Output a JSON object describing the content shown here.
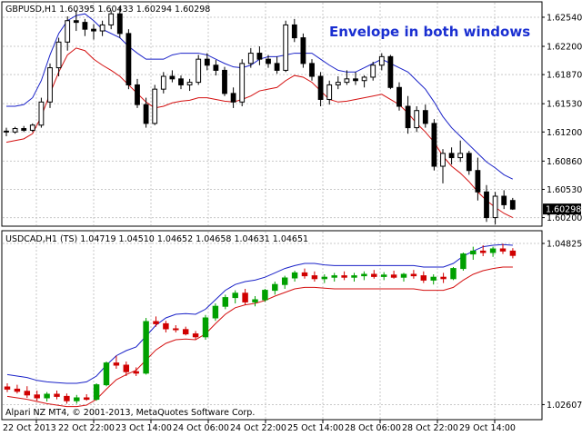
{
  "headline": "Envelope in both windows",
  "copyright": "Alpari NZ MT4, © 2001-2013, MetaQuotes Software Corp.",
  "colors": {
    "upper_band": "#1a22c8",
    "lower_band": "#d41010",
    "bull_candle": "#00a000",
    "bear_candle": "#d00000",
    "candle_main": "#000000",
    "grid": "#c8c8c8",
    "badge_bg": "#000000"
  },
  "chart_data": [
    {
      "type": "candlestick",
      "header": "GBPUSD,H1  1.60395 1.60433 1.60294 1.60298",
      "current_price_label": "1.60298",
      "y_ticks": [
        "1.62540",
        "1.62200",
        "1.61870",
        "1.61530",
        "1.61200",
        "1.60860",
        "1.60530",
        "1.60200"
      ],
      "ylim": [
        1.601,
        1.6272
      ],
      "candles": [
        [
          1.6121,
          1.6125,
          1.6115,
          1.612
        ],
        [
          1.612,
          1.6126,
          1.6118,
          1.6124
        ],
        [
          1.6124,
          1.6127,
          1.612,
          1.6122
        ],
        [
          1.6122,
          1.613,
          1.612,
          1.6128
        ],
        [
          1.6128,
          1.616,
          1.6125,
          1.6155
        ],
        [
          1.6155,
          1.62,
          1.6148,
          1.6195
        ],
        [
          1.6195,
          1.623,
          1.6185,
          1.6225
        ],
        [
          1.6225,
          1.6255,
          1.6215,
          1.625
        ],
        [
          1.625,
          1.6262,
          1.6238,
          1.6248
        ],
        [
          1.6248,
          1.6252,
          1.6232,
          1.624
        ],
        [
          1.624,
          1.6246,
          1.6228,
          1.6238
        ],
        [
          1.6238,
          1.625,
          1.6232,
          1.6245
        ],
        [
          1.6245,
          1.6262,
          1.624,
          1.6258
        ],
        [
          1.6258,
          1.6266,
          1.623,
          1.6235
        ],
        [
          1.6235,
          1.624,
          1.617,
          1.6175
        ],
        [
          1.6175,
          1.6182,
          1.6148,
          1.6152
        ],
        [
          1.6152,
          1.616,
          1.6125,
          1.613
        ],
        [
          1.613,
          1.6175,
          1.6128,
          1.617
        ],
        [
          1.617,
          1.619,
          1.6165,
          1.6185
        ],
        [
          1.6185,
          1.6192,
          1.6178,
          1.6182
        ],
        [
          1.6182,
          1.6186,
          1.617,
          1.6175
        ],
        [
          1.6175,
          1.6182,
          1.6168,
          1.6178
        ],
        [
          1.6178,
          1.621,
          1.6175,
          1.6205
        ],
        [
          1.6205,
          1.6212,
          1.6192,
          1.6198
        ],
        [
          1.6198,
          1.6204,
          1.6186,
          1.6192
        ],
        [
          1.6192,
          1.6196,
          1.6162,
          1.6165
        ],
        [
          1.6165,
          1.6172,
          1.6148,
          1.6155
        ],
        [
          1.6155,
          1.6205,
          1.615,
          1.62
        ],
        [
          1.62,
          1.6218,
          1.6195,
          1.6212
        ],
        [
          1.6212,
          1.622,
          1.6198,
          1.6205
        ],
        [
          1.6205,
          1.621,
          1.6195,
          1.62
        ],
        [
          1.62,
          1.6208,
          1.6188,
          1.6192
        ],
        [
          1.6192,
          1.625,
          1.619,
          1.6245
        ],
        [
          1.6245,
          1.6252,
          1.6225,
          1.623
        ],
        [
          1.623,
          1.6235,
          1.6195,
          1.62
        ],
        [
          1.62,
          1.6205,
          1.618,
          1.6185
        ],
        [
          1.6185,
          1.619,
          1.615,
          1.6158
        ],
        [
          1.6158,
          1.618,
          1.6152,
          1.6175
        ],
        [
          1.6175,
          1.6185,
          1.617,
          1.6178
        ],
        [
          1.6178,
          1.6192,
          1.6175,
          1.6182
        ],
        [
          1.6182,
          1.619,
          1.6175,
          1.618
        ],
        [
          1.618,
          1.6186,
          1.6172,
          1.6184
        ],
        [
          1.6184,
          1.6202,
          1.618,
          1.6198
        ],
        [
          1.6198,
          1.6212,
          1.6192,
          1.6208
        ],
        [
          1.6208,
          1.621,
          1.617,
          1.6172
        ],
        [
          1.6172,
          1.6178,
          1.6145,
          1.615
        ],
        [
          1.615,
          1.6162,
          1.6118,
          1.6125
        ],
        [
          1.6125,
          1.615,
          1.612,
          1.6145
        ],
        [
          1.6145,
          1.6152,
          1.6125,
          1.613
        ],
        [
          1.613,
          1.6135,
          1.6075,
          1.608
        ],
        [
          1.608,
          1.61,
          1.606,
          1.6095
        ],
        [
          1.6095,
          1.6102,
          1.6082,
          1.609
        ],
        [
          1.609,
          1.611,
          1.6085,
          1.6095
        ],
        [
          1.6095,
          1.6098,
          1.607,
          1.6075
        ],
        [
          1.6075,
          1.609,
          1.604,
          1.605
        ],
        [
          1.605,
          1.6058,
          1.6015,
          1.602
        ],
        [
          1.602,
          1.605,
          1.6012,
          1.6045
        ],
        [
          1.6045,
          1.6052,
          1.603,
          1.6035
        ],
        [
          1.604,
          1.6043,
          1.6029,
          1.603
        ]
      ],
      "upper_band": [
        1.615,
        1.615,
        1.6152,
        1.616,
        1.618,
        1.621,
        1.6235,
        1.625,
        1.6256,
        1.6258,
        1.625,
        1.624,
        1.6235,
        1.623,
        1.622,
        1.6212,
        1.6205,
        1.6205,
        1.6205,
        1.621,
        1.6212,
        1.6212,
        1.6212,
        1.621,
        1.6205,
        1.62,
        1.6196,
        1.6195,
        1.6198,
        1.6205,
        1.6208,
        1.6208,
        1.621,
        1.6212,
        1.6212,
        1.6212,
        1.6205,
        1.6198,
        1.6192,
        1.619,
        1.619,
        1.6195,
        1.62,
        1.6205,
        1.62,
        1.6195,
        1.619,
        1.618,
        1.617,
        1.6155,
        1.6138,
        1.6125,
        1.6115,
        1.6105,
        1.6095,
        1.6085,
        1.6078,
        1.607,
        1.6065
      ],
      "lower_band": [
        1.6108,
        1.611,
        1.6112,
        1.6118,
        1.6138,
        1.6165,
        1.619,
        1.621,
        1.6218,
        1.6215,
        1.6205,
        1.6198,
        1.6192,
        1.6185,
        1.6175,
        1.6165,
        1.6155,
        1.6148,
        1.615,
        1.6154,
        1.6156,
        1.6157,
        1.616,
        1.616,
        1.6158,
        1.6156,
        1.6155,
        1.6158,
        1.6162,
        1.6168,
        1.617,
        1.6172,
        1.618,
        1.6186,
        1.6184,
        1.6178,
        1.6168,
        1.6158,
        1.6155,
        1.6156,
        1.6158,
        1.616,
        1.6162,
        1.6164,
        1.6158,
        1.6152,
        1.6142,
        1.613,
        1.612,
        1.6108,
        1.6092,
        1.608,
        1.6072,
        1.6062,
        1.605,
        1.604,
        1.6032,
        1.6025,
        1.602
      ]
    },
    {
      "type": "candlestick",
      "header": "USDCAD,H1 (TS) 1.04719 1.04510 1.04652 1.04658 1.04631 1.04651",
      "y_ticks": [
        "1.04825",
        "1.02607"
      ],
      "ylim": [
        1.024,
        1.05
      ],
      "candles": [
        [
          1.0285,
          1.029,
          1.0278,
          1.0282
        ],
        [
          1.0282,
          1.0288,
          1.0276,
          1.0279
        ],
        [
          1.0279,
          1.0286,
          1.027,
          1.0274
        ],
        [
          1.0274,
          1.028,
          1.0266,
          1.027
        ],
        [
          1.027,
          1.0278,
          1.0265,
          1.0275
        ],
        [
          1.0275,
          1.028,
          1.0268,
          1.0272
        ],
        [
          1.0272,
          1.0276,
          1.0262,
          1.0266
        ],
        [
          1.0266,
          1.0274,
          1.0262,
          1.027
        ],
        [
          1.027,
          1.0275,
          1.0266,
          1.0268
        ],
        [
          1.0268,
          1.029,
          1.0266,
          1.0288
        ],
        [
          1.0288,
          1.032,
          1.0286,
          1.0318
        ],
        [
          1.0318,
          1.0328,
          1.031,
          1.0315
        ],
        [
          1.0315,
          1.032,
          1.03,
          1.0306
        ],
        [
          1.0306,
          1.0312,
          1.03,
          1.0304
        ],
        [
          1.0304,
          1.038,
          1.0302,
          1.0375
        ],
        [
          1.0375,
          1.0382,
          1.0368,
          1.0372
        ],
        [
          1.0372,
          1.0376,
          1.036,
          1.0365
        ],
        [
          1.0365,
          1.037,
          1.036,
          1.0364
        ],
        [
          1.0364,
          1.0368,
          1.0356,
          1.0358
        ],
        [
          1.0358,
          1.0362,
          1.035,
          1.0354
        ],
        [
          1.0354,
          1.0384,
          1.035,
          1.038
        ],
        [
          1.038,
          1.04,
          1.0376,
          1.0396
        ],
        [
          1.0396,
          1.0412,
          1.0392,
          1.0408
        ],
        [
          1.0408,
          1.0418,
          1.04,
          1.0414
        ],
        [
          1.0414,
          1.042,
          1.0398,
          1.0402
        ],
        [
          1.0402,
          1.041,
          1.0396,
          1.0405
        ],
        [
          1.0405,
          1.042,
          1.0402,
          1.0418
        ],
        [
          1.0418,
          1.043,
          1.0412,
          1.0426
        ],
        [
          1.0426,
          1.0438,
          1.042,
          1.0435
        ],
        [
          1.0435,
          1.0445,
          1.043,
          1.0442
        ],
        [
          1.0442,
          1.0448,
          1.0434,
          1.0438
        ],
        [
          1.0438,
          1.0444,
          1.043,
          1.0434
        ],
        [
          1.0434,
          1.044,
          1.0428,
          1.0436
        ],
        [
          1.0436,
          1.0442,
          1.043,
          1.0438
        ],
        [
          1.0438,
          1.0444,
          1.0432,
          1.0436
        ],
        [
          1.0436,
          1.0442,
          1.043,
          1.0438
        ],
        [
          1.0438,
          1.0444,
          1.0432,
          1.044
        ],
        [
          1.044,
          1.0446,
          1.0434,
          1.0437
        ],
        [
          1.0437,
          1.0443,
          1.0432,
          1.0439
        ],
        [
          1.0439,
          1.0445,
          1.0434,
          1.0436
        ],
        [
          1.0436,
          1.0442,
          1.043,
          1.044
        ],
        [
          1.044,
          1.0446,
          1.0434,
          1.0438
        ],
        [
          1.0438,
          1.0444,
          1.0428,
          1.0432
        ],
        [
          1.0432,
          1.044,
          1.0426,
          1.0436
        ],
        [
          1.0436,
          1.0442,
          1.0428,
          1.0434
        ],
        [
          1.0434,
          1.045,
          1.0432,
          1.0448
        ],
        [
          1.0448,
          1.047,
          1.0445,
          1.0468
        ],
        [
          1.0468,
          1.0478,
          1.046,
          1.0472
        ],
        [
          1.0472,
          1.048,
          1.0465,
          1.047
        ],
        [
          1.047,
          1.0478,
          1.0464,
          1.0475
        ],
        [
          1.0475,
          1.0482,
          1.0468,
          1.0472
        ],
        [
          1.0472,
          1.0476,
          1.0462,
          1.0466
        ]
      ],
      "upper_band": [
        1.0302,
        1.03,
        1.0298,
        1.0294,
        1.0292,
        1.0291,
        1.029,
        1.029,
        1.0292,
        1.03,
        1.0315,
        1.0328,
        1.0335,
        1.034,
        1.0355,
        1.037,
        1.038,
        1.0385,
        1.0386,
        1.0385,
        1.0392,
        1.0405,
        1.0418,
        1.0426,
        1.043,
        1.0432,
        1.0436,
        1.0442,
        1.0448,
        1.0452,
        1.0455,
        1.0455,
        1.0453,
        1.0452,
        1.0452,
        1.0452,
        1.0452,
        1.0452,
        1.0452,
        1.0452,
        1.0452,
        1.0452,
        1.045,
        1.045,
        1.045,
        1.0455,
        1.0465,
        1.0472,
        1.0478,
        1.048,
        1.0481,
        1.048
      ],
      "lower_band": [
        1.0272,
        1.027,
        1.0268,
        1.0265,
        1.0262,
        1.026,
        1.0258,
        1.0258,
        1.026,
        1.0268,
        1.0282,
        1.0295,
        1.0302,
        1.0308,
        1.0322,
        1.0336,
        1.0345,
        1.035,
        1.0351,
        1.035,
        1.0358,
        1.0372,
        1.0385,
        1.0394,
        1.0398,
        1.04,
        1.0404,
        1.041,
        1.0415,
        1.042,
        1.0422,
        1.0422,
        1.0421,
        1.042,
        1.042,
        1.042,
        1.042,
        1.042,
        1.042,
        1.042,
        1.042,
        1.042,
        1.0418,
        1.0418,
        1.0418,
        1.0422,
        1.0432,
        1.044,
        1.0445,
        1.0448,
        1.045,
        1.045
      ]
    }
  ],
  "x_labels": [
    "22 Oct 2013",
    "22 Oct 22:00",
    "23 Oct 14:00",
    "24 Oct 06:00",
    "24 Oct 22:00",
    "25 Oct 14:00",
    "28 Oct 06:00",
    "28 Oct 22:00",
    "29 Oct 14:00"
  ]
}
